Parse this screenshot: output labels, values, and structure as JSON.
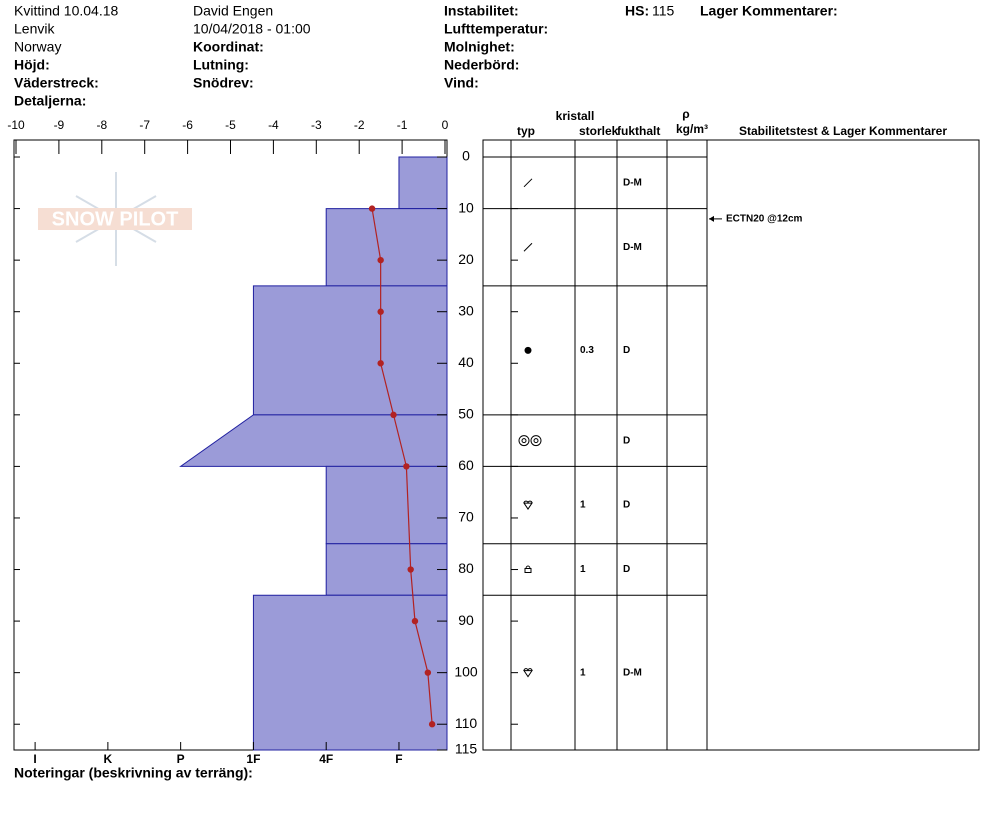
{
  "header": {
    "site": "Kvittind 10.04.18",
    "region": "Lenvik",
    "country": "Norway",
    "observer": "David Engen",
    "datetime": "10/04/2018 - 01:00",
    "elevation": "Höjd:",
    "aspect": "Väderstreck:",
    "details": "Detaljerna:",
    "coordinates": "Koordinat:",
    "slope": "Lutning:",
    "wind_loading": "Snödrev:",
    "instability": "Instabilitet:",
    "air_temperature": "Lufttemperatur:",
    "sky": "Molnighet:",
    "precipitation": "Nederbörd:",
    "wind": "Vind:",
    "hs_label": "HS:",
    "hs": 115,
    "layer_comments": "Lager Kommentarer:"
  },
  "chart_data": {
    "type": "snow-profile",
    "logo": "SNOW PILOT",
    "xlim": [
      -10,
      0
    ],
    "xticks": [
      -10,
      -9,
      -8,
      -7,
      -6,
      -5,
      -4,
      -3,
      -2,
      -1,
      0
    ],
    "ylim": [
      -3.3,
      115
    ],
    "yticks": [
      0,
      10,
      20,
      30,
      40,
      50,
      60,
      70,
      80,
      90,
      100,
      110,
      115
    ],
    "hardness_lim": [
      6.29,
      0.34
    ],
    "hardness_ticks": [
      {
        "value": 6,
        "label": "I"
      },
      {
        "value": 5,
        "label": "K"
      },
      {
        "value": 4,
        "label": "P"
      },
      {
        "value": 3,
        "label": "1F"
      },
      {
        "value": 2,
        "label": "4F"
      },
      {
        "value": 1,
        "label": "F"
      }
    ],
    "layer_color": "#9b9bd8",
    "layers": [
      {
        "top": 0,
        "bottom": 10,
        "hardness": 1,
        "moisture": "D-M"
      },
      {
        "top": 10,
        "bottom": 25,
        "hardness": 2,
        "moisture": "D-M"
      },
      {
        "top": 25,
        "bottom": 50,
        "hardness": 3,
        "size": 0.3,
        "moisture": "D"
      },
      {
        "top": 50,
        "bottom": 60,
        "hardness": 3,
        "hardness_bottom": 4,
        "moisture": "D"
      },
      {
        "top": 60,
        "bottom": 75,
        "hardness": 2,
        "size": 1,
        "moisture": "D"
      },
      {
        "top": 75,
        "bottom": 85,
        "hardness": 2,
        "size": 1,
        "moisture": "D"
      },
      {
        "top": 85,
        "bottom": 115,
        "hardness": 3,
        "size": 1,
        "moisture": "D-M"
      }
    ],
    "temperature": {
      "color": "#b22222",
      "depth": [
        10,
        20,
        30,
        40,
        50,
        60,
        80,
        90,
        100,
        110
      ],
      "values": [
        -1.7,
        -1.5,
        -1.5,
        -1.5,
        -1.2,
        -0.9,
        -0.8,
        -0.7,
        -0.4,
        -0.3
      ]
    },
    "table_headers": {
      "crystal": "kristall",
      "type": "typ",
      "size": "storlek",
      "moisture": "fukthalt",
      "density": "ρ",
      "density_unit": "kg/m³",
      "comments": "Stabilitetstest & Lager Kommentarer"
    },
    "annotation": {
      "depth": 12,
      "text": "ECTN20 @12cm"
    },
    "notes_label": "Noteringar (beskrivning av terräng):"
  }
}
